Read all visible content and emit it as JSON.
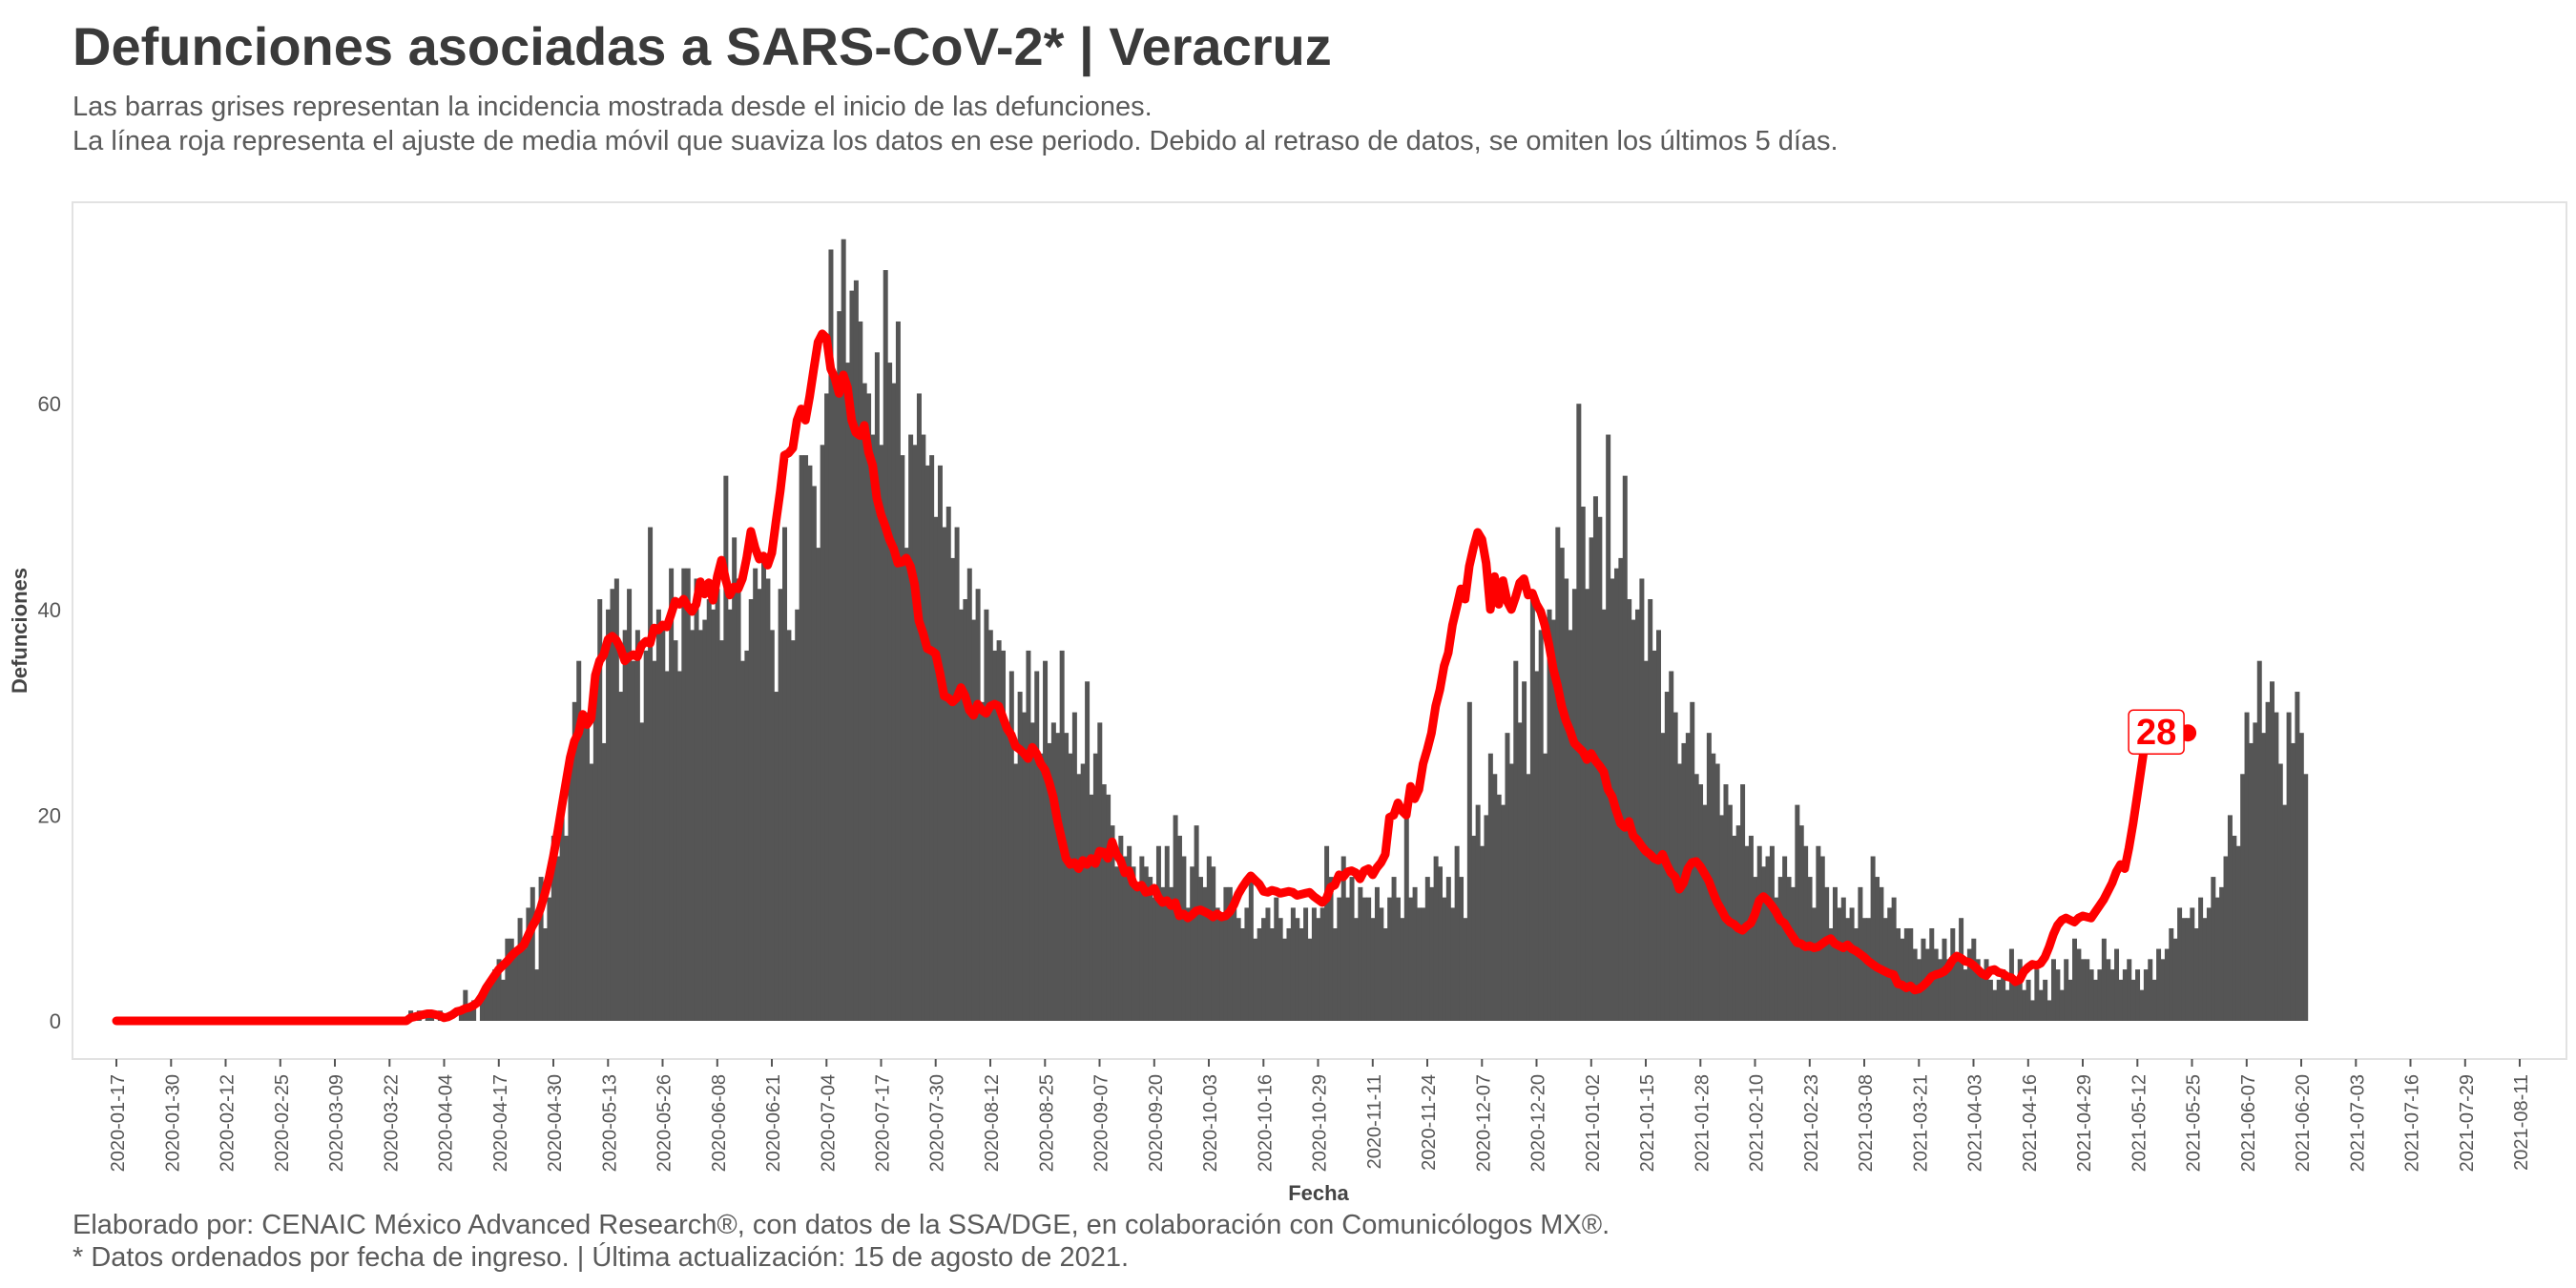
{
  "title": "Defunciones asociadas a SARS-CoV-2* | Veracruz",
  "subtitle_lines": [
    "Las barras grises representan la incidencia mostrada desde el inicio de las defunciones.",
    "La línea roja representa el ajuste de media móvil que suaviza los datos en ese periodo. Debido al retraso de datos, se omiten los últimos 5 días."
  ],
  "caption_lines": [
    "Elaborado por: CENAIC México Advanced Research®, con datos de la SSA/DGE, en colaboración con Comunicólogos MX®.",
    "* Datos ordenados por fecha de ingreso. | Última actualización: 15 de agosto de 2021."
  ],
  "colors": {
    "bars": "#555555",
    "line": "#ff0000",
    "panel_border": "#e2e2e2",
    "text": "#444444"
  },
  "chart_data": {
    "type": "bar",
    "xlabel": "Fecha",
    "ylabel": "Defunciones",
    "x_start": "2020-01-17",
    "x_ticks": [
      "2020-01-17",
      "2020-01-30",
      "2020-02-12",
      "2020-02-25",
      "2020-03-09",
      "2020-03-22",
      "2020-04-04",
      "2020-04-17",
      "2020-04-30",
      "2020-05-13",
      "2020-05-26",
      "2020-06-08",
      "2020-06-21",
      "2020-07-04",
      "2020-07-17",
      "2020-07-30",
      "2020-08-12",
      "2020-08-25",
      "2020-09-07",
      "2020-09-20",
      "2020-10-03",
      "2020-10-16",
      "2020-10-29",
      "2020-11-11",
      "2020-11-24",
      "2020-12-07",
      "2020-12-20",
      "2021-01-02",
      "2021-01-15",
      "2021-01-28",
      "2021-02-10",
      "2021-02-23",
      "2021-03-08",
      "2021-03-21",
      "2021-04-03",
      "2021-04-16",
      "2021-04-29",
      "2021-05-12",
      "2021-05-25",
      "2021-06-07",
      "2021-06-20",
      "2021-07-03",
      "2021-07-16",
      "2021-07-29",
      "2021-08-11"
    ],
    "y_ticks": [
      0,
      20,
      40,
      60
    ],
    "ylim": [
      0,
      76
    ],
    "x_range": [
      "2020-01-17",
      "2021-08-11"
    ],
    "grid": false,
    "bars_first_date": "2020-03-25",
    "bars_values": [
      0,
      0,
      1,
      0,
      1,
      0,
      1,
      1,
      0,
      1,
      0,
      0,
      0,
      0,
      1,
      3,
      1,
      2,
      0,
      2,
      3,
      4,
      5,
      6,
      4,
      8,
      8,
      7,
      10,
      7,
      11,
      13,
      5,
      14,
      9,
      12,
      18,
      16,
      22,
      18,
      25,
      31,
      35,
      29,
      30,
      25,
      34,
      41,
      27,
      40,
      42,
      43,
      32,
      38,
      42,
      35,
      38,
      29,
      36,
      48,
      35,
      40,
      38,
      34,
      44,
      37,
      34,
      44,
      44,
      38,
      43,
      38,
      39,
      41,
      40,
      42,
      37,
      53,
      40,
      47,
      43,
      35,
      36,
      41,
      44,
      42,
      45,
      43,
      38,
      32,
      42,
      48,
      38,
      37,
      40,
      55,
      55,
      54,
      52,
      46,
      56,
      61,
      75,
      63,
      69,
      76,
      64,
      71,
      72,
      68,
      62,
      61,
      57,
      65,
      56,
      73,
      64,
      62,
      68,
      55,
      46,
      57,
      56,
      61,
      57,
      54,
      55,
      49,
      54,
      48,
      50,
      45,
      48,
      40,
      41,
      44,
      39,
      42,
      31,
      40,
      38,
      36,
      37,
      36,
      28,
      34,
      25,
      32,
      30,
      36,
      29,
      34,
      26,
      35,
      27,
      29,
      28,
      36,
      28,
      26,
      30,
      24,
      25,
      33,
      22,
      26,
      29,
      23,
      22,
      19,
      15,
      18,
      16,
      17,
      15,
      13,
      16,
      15,
      14,
      12,
      17,
      13,
      17,
      13,
      20,
      18,
      16,
      11,
      15,
      19,
      14,
      13,
      16,
      15,
      11,
      10,
      13,
      13,
      12,
      10,
      9,
      11,
      14,
      8,
      9,
      10,
      11,
      9,
      12,
      10,
      8,
      9,
      11,
      10,
      9,
      11,
      8,
      11,
      10,
      11,
      17,
      14,
      9,
      12,
      16,
      12,
      14,
      10,
      13,
      12,
      12,
      10,
      13,
      11,
      9,
      12,
      14,
      12,
      10,
      20,
      12,
      13,
      11,
      11,
      14,
      13,
      16,
      15,
      12,
      14,
      11,
      17,
      14,
      10,
      31,
      18,
      21,
      17,
      20,
      26,
      24,
      22,
      21,
      28,
      25,
      35,
      29,
      33,
      24,
      41,
      34,
      38,
      26,
      40,
      39,
      48,
      46,
      43,
      38,
      42,
      60,
      50,
      42,
      47,
      51,
      49,
      40,
      57,
      43,
      44,
      45,
      53,
      41,
      39,
      40,
      43,
      35,
      41,
      36,
      38,
      28,
      32,
      34,
      30,
      25,
      27,
      28,
      31,
      24,
      23,
      21,
      28,
      26,
      25,
      20,
      23,
      21,
      18,
      19,
      23,
      17,
      18,
      14,
      17,
      15,
      16,
      17,
      12,
      14,
      16,
      14,
      13,
      21,
      19,
      17,
      14,
      11,
      17,
      16,
      13,
      9,
      13,
      11,
      12,
      10,
      11,
      9,
      13,
      10,
      10,
      16,
      14,
      13,
      10,
      11,
      12,
      9,
      8,
      9,
      9,
      7,
      6,
      8,
      7,
      9,
      7,
      6,
      8,
      6,
      9,
      6,
      10,
      5,
      7,
      8,
      6,
      5,
      6,
      4,
      3,
      4,
      5,
      3,
      7,
      4,
      6,
      3,
      4,
      2,
      5,
      3,
      4,
      2,
      6,
      5,
      3,
      6,
      4,
      8,
      7,
      6,
      6,
      5,
      4,
      5,
      8,
      6,
      5,
      7,
      4,
      5,
      6,
      4,
      5,
      3,
      5,
      6,
      4,
      7,
      6,
      7,
      9,
      8,
      11,
      10,
      10,
      11,
      9,
      12,
      10,
      11,
      14,
      12,
      13,
      16,
      20,
      18,
      17,
      24,
      30,
      27,
      29,
      35,
      28,
      31,
      33,
      30,
      25,
      21,
      30,
      27,
      32,
      28,
      24
    ],
    "series": [
      {
        "name": "media móvil",
        "first_date": "2020-01-17",
        "segments": [
          {
            "start_date": "2020-01-17",
            "end_date": "2020-03-25",
            "value": 0
          },
          {
            "start_date": "2020-03-25",
            "values": [
              0,
              0,
              0.3,
              0.4,
              0.5,
              0.6,
              0.7,
              0.7,
              0.6,
              0.5,
              0.3,
              0.4,
              0.6,
              0.9,
              1.0,
              1.2,
              1.3,
              1.5,
              1.8,
              2.4,
              3.2,
              3.8,
              4.4,
              5.0,
              5.4,
              5.8,
              6.3,
              6.7,
              7.0,
              7.4,
              8.3,
              9.2,
              9.9,
              11.0,
              12.4,
              14.0,
              16.0,
              18.3,
              20.8,
              23.2,
              25.6,
              27.2,
              28.0,
              29.8,
              28.8,
              29.4,
              33.6,
              35.0,
              35.6,
              37.1,
              37.4,
              37.0,
              36.2,
              35.0,
              35.4,
              35.6,
              35.4,
              36.5,
              36.9,
              36.7,
              38.2,
              38.0,
              38.5,
              38.3,
              39.5,
              40.8,
              40.5,
              41.0,
              40.3,
              39.8,
              40.5,
              42.7,
              41.5,
              42.6,
              40.9,
              43.2,
              44.8,
              42.9,
              41.4,
              42.2,
              42.0,
              43.0,
              45.0,
              47.6,
              46.0,
              44.9,
              45.2,
              44.3,
              45.5,
              48.6,
              51.5,
              55.0,
              55.2,
              55.7,
              58.4,
              59.5,
              58.4,
              60.7,
              63.4,
              66.0,
              66.8,
              66.4,
              63.4,
              62.5,
              61.0,
              62.8,
              61.6,
              58.4,
              57.2,
              56.9,
              57.9,
              55.3,
              54.0,
              50.8,
              49.2,
              48.1,
              46.8,
              45.9,
              44.5,
              44.6,
              45.0,
              44.2,
              42.4,
              38.9,
              37.7,
              36.2,
              36.0,
              35.7,
              33.8,
              31.6,
              31.4,
              31.0,
              31.4,
              32.4,
              31.6,
              30.2,
              29.7,
              30.8,
              30.2,
              29.9,
              30.6,
              30.8,
              30.6,
              29.5,
              28.4,
              27.8,
              26.7,
              26.4,
              26.0,
              25.5,
              26.6,
              26.0,
              25.0,
              24.4,
              23.2,
              21.7,
              19.4,
              17.6,
              15.8,
              15.2,
              15.4,
              14.8,
              15.6,
              15.2,
              15.8,
              15.3,
              16.5,
              16.4,
              15.8,
              17.4,
              16.2,
              15.6,
              14.4,
              14.6,
              13.4,
              13.0,
              13.2,
              12.5,
              12.6,
              12.9,
              12.0,
              11.5,
              11.7,
              11.2,
              11.5,
              10.2,
              10.4,
              10.0,
              10.3,
              10.7,
              10.8,
              10.6,
              10.4,
              10.1,
              10.4,
              10.1,
              10.2,
              10.6,
              11.3,
              12.3,
              13.0,
              13.6,
              14.1,
              13.7,
              13.3,
              12.6,
              12.5,
              12.7,
              12.6,
              12.4,
              12.5,
              12.6,
              12.5,
              12.2,
              12.3,
              12.4,
              12.5,
              12.1,
              11.8,
              11.5,
              11.9,
              13.0,
              13.2,
              14.2,
              14.0,
              14.5,
              14.6,
              14.4,
              13.8,
              14.6,
              14.8,
              14.2,
              14.9,
              15.4,
              16.2,
              19.8,
              20.0,
              21.2,
              20.4,
              20.0,
              22.8,
              21.6,
              22.5,
              25.0,
              26.4,
              28.0,
              30.6,
              32.2,
              34.5,
              35.8,
              38.5,
              40.2,
              42.0,
              41.0,
              44.2,
              46.0,
              47.5,
              46.8,
              44.5,
              40.0,
              43.2,
              40.5,
              42.8,
              40.8,
              40.0,
              41.2,
              42.6,
              43.0,
              41.4,
              41.6,
              40.5,
              39.8,
              38.4,
              36.5,
              34.2,
              32.6,
              30.6,
              29.2,
              28.2,
              27.0,
              26.6,
              26.2,
              25.4,
              26.0,
              25.3,
              24.8,
              24.2,
              22.5,
              21.8,
              20.4,
              19.2,
              18.8,
              19.4,
              18.0,
              17.6,
              17.0,
              16.5,
              16.2,
              15.8,
              15.6,
              16.2,
              15.2,
              14.4,
              14.0,
              12.8,
              13.4,
              14.8,
              15.4,
              15.5,
              15.0,
              14.3,
              13.6,
              12.5,
              11.5,
              10.8,
              10.0,
              9.6,
              9.4,
              9.0,
              8.8,
              9.2,
              9.5,
              10.4,
              11.7,
              12.1,
              11.7,
              11.2,
              10.6,
              9.8,
              9.5,
              8.8,
              8.2,
              7.6,
              7.5,
              7.2,
              7.3,
              7.1,
              7.2,
              7.5,
              7.8,
              8.0,
              7.5,
              7.3,
              7.1,
              7.4,
              7.0,
              6.8,
              6.5,
              6.2,
              5.8,
              5.5,
              5.2,
              5.0,
              4.8,
              4.6,
              4.5,
              3.6,
              3.5,
              3.2,
              3.4,
              3.0,
              3.1,
              3.4,
              3.8,
              4.3,
              4.5,
              4.6,
              4.8,
              5.2,
              5.9,
              6.3,
              6.1,
              5.8,
              5.7,
              5.4,
              5.0,
              4.6,
              4.4,
              4.9,
              5.0,
              4.7,
              4.6,
              4.3,
              4.2,
              3.8,
              4.0,
              4.8,
              5.2,
              5.5,
              5.4,
              5.6,
              6.2,
              7.2,
              8.4,
              9.3,
              9.8,
              10.0,
              9.8,
              9.6,
              10.0,
              10.2,
              10.1,
              10.0,
              10.6,
              11.2,
              11.8,
              12.6,
              13.4,
              14.5,
              15.2,
              14.8,
              16.8,
              19.2,
              22.0,
              24.8,
              27.6,
              28.6,
              28.0,
              28.2,
              28.1,
              28.2,
              28.0,
              28.0,
              28.0,
              28.0,
              28.0
            ]
          }
        ]
      }
    ],
    "last_value_label": "28"
  }
}
